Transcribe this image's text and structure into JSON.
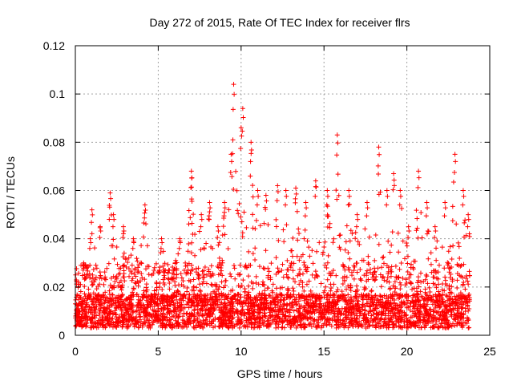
{
  "chart_data": {
    "type": "scatter",
    "title": "Day 272 of 2015, Rate Of TEC Index for receiver flrs",
    "xlabel": "GPS time / hours",
    "ylabel": "ROTI / TECUs",
    "xlim": [
      0,
      25
    ],
    "ylim": [
      0,
      0.12
    ],
    "xticks": [
      0,
      5,
      10,
      15,
      20,
      25
    ],
    "xtick_labels": [
      "0",
      "5",
      "10",
      "15",
      "20",
      "25"
    ],
    "yticks": [
      0,
      0.02,
      0.04,
      0.06,
      0.08,
      0.1,
      0.12
    ],
    "ytick_labels": [
      "0",
      "0.02",
      "0.04",
      "0.06",
      "0.08",
      "0.1",
      "0.12"
    ],
    "grid": true,
    "marker": "+",
    "series": [
      {
        "name": "ROTI",
        "color": "#ff0000",
        "x_range": [
          0,
          23.8
        ],
        "typical_max": 0.03,
        "floor": 0.003,
        "peaks": [
          {
            "x": 0.2,
            "y": 0.022
          },
          {
            "x": 0.5,
            "y": 0.03
          },
          {
            "x": 0.9,
            "y": 0.04
          },
          {
            "x": 1.0,
            "y": 0.052
          },
          {
            "x": 1.5,
            "y": 0.045
          },
          {
            "x": 2.1,
            "y": 0.059
          },
          {
            "x": 2.3,
            "y": 0.05
          },
          {
            "x": 2.9,
            "y": 0.045
          },
          {
            "x": 3.5,
            "y": 0.04
          },
          {
            "x": 4.2,
            "y": 0.054
          },
          {
            "x": 5.2,
            "y": 0.04
          },
          {
            "x": 6.3,
            "y": 0.04
          },
          {
            "x": 7.0,
            "y": 0.068
          },
          {
            "x": 7.6,
            "y": 0.05
          },
          {
            "x": 8.1,
            "y": 0.055
          },
          {
            "x": 8.6,
            "y": 0.045
          },
          {
            "x": 9.0,
            "y": 0.055
          },
          {
            "x": 9.4,
            "y": 0.075
          },
          {
            "x": 9.55,
            "y": 0.104
          },
          {
            "x": 10.0,
            "y": 0.086
          },
          {
            "x": 10.1,
            "y": 0.094
          },
          {
            "x": 10.6,
            "y": 0.08
          },
          {
            "x": 11.0,
            "y": 0.06
          },
          {
            "x": 11.5,
            "y": 0.058
          },
          {
            "x": 12.2,
            "y": 0.062
          },
          {
            "x": 12.7,
            "y": 0.06
          },
          {
            "x": 13.3,
            "y": 0.061
          },
          {
            "x": 13.9,
            "y": 0.055
          },
          {
            "x": 14.5,
            "y": 0.064
          },
          {
            "x": 15.2,
            "y": 0.06
          },
          {
            "x": 15.8,
            "y": 0.083
          },
          {
            "x": 16.5,
            "y": 0.06
          },
          {
            "x": 17.0,
            "y": 0.05
          },
          {
            "x": 17.6,
            "y": 0.055
          },
          {
            "x": 18.3,
            "y": 0.078
          },
          {
            "x": 18.8,
            "y": 0.06
          },
          {
            "x": 19.2,
            "y": 0.067
          },
          {
            "x": 19.6,
            "y": 0.06
          },
          {
            "x": 20.1,
            "y": 0.045
          },
          {
            "x": 20.7,
            "y": 0.068
          },
          {
            "x": 21.2,
            "y": 0.055
          },
          {
            "x": 21.7,
            "y": 0.045
          },
          {
            "x": 22.3,
            "y": 0.055
          },
          {
            "x": 22.9,
            "y": 0.075
          },
          {
            "x": 23.4,
            "y": 0.06
          },
          {
            "x": 23.7,
            "y": 0.05
          }
        ]
      }
    ]
  }
}
